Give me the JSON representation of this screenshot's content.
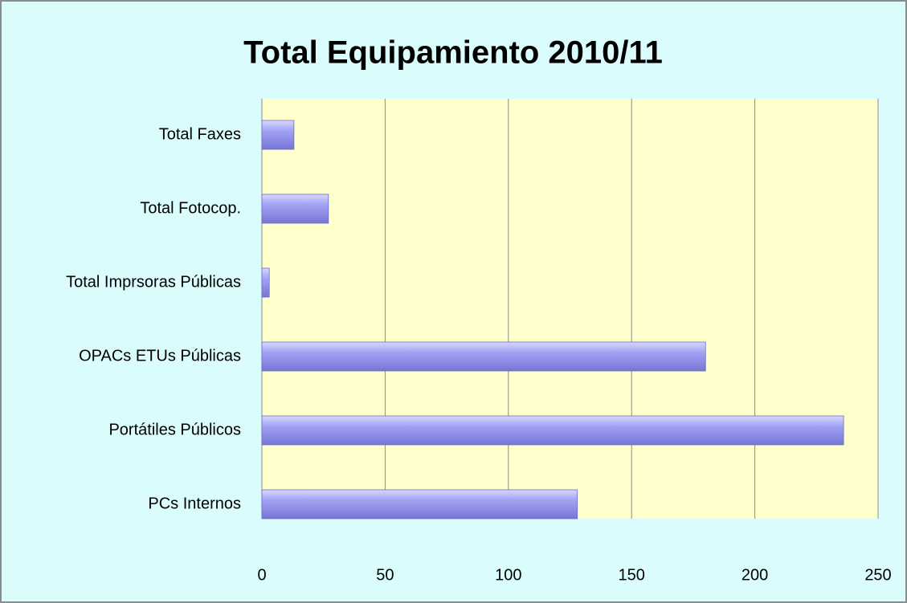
{
  "chart_data": {
    "type": "bar",
    "orientation": "horizontal",
    "title": "Total Equipamiento 2010/11",
    "categories": [
      "PCs Internos",
      "Portátiles Públicos",
      "OPACs ETUs Públicas",
      "Total Imprsoras Públicas",
      "Total Fotocop.",
      "Total Faxes"
    ],
    "values": [
      128,
      236,
      180,
      3,
      27,
      13
    ],
    "color": "#9999ff",
    "xlim": [
      0,
      250
    ],
    "xticks": [
      0,
      50,
      100,
      150,
      200,
      250
    ],
    "grid": true
  }
}
